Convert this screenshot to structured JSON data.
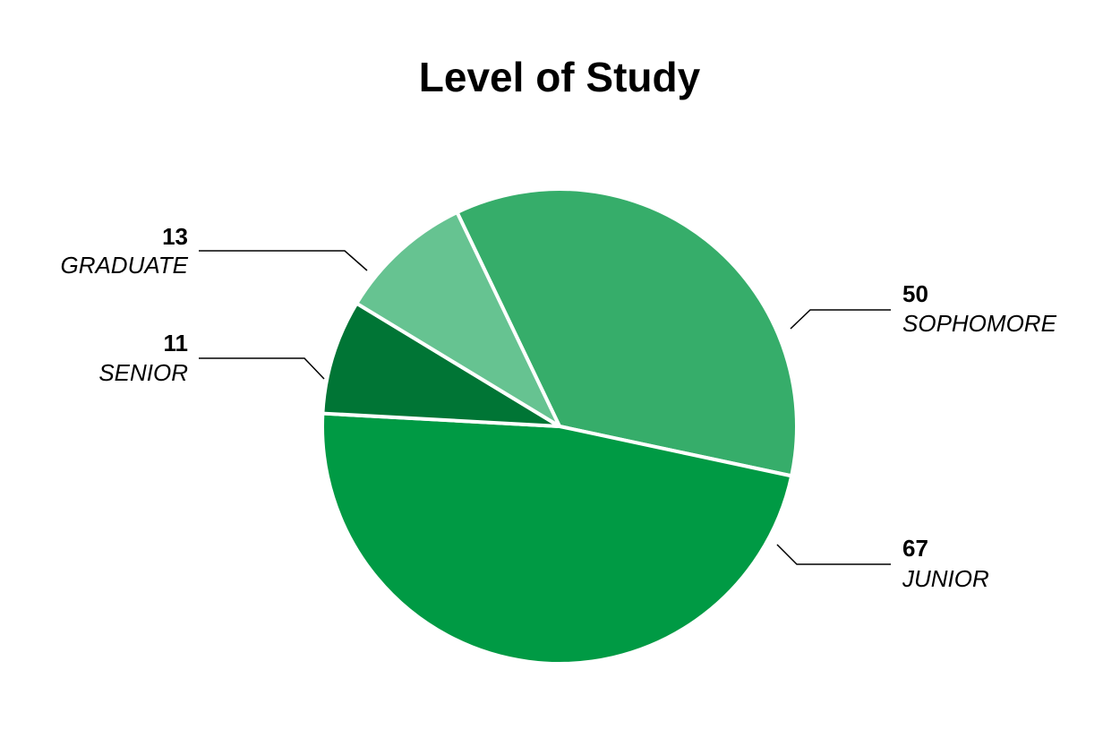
{
  "chart_data": {
    "type": "pie",
    "title": "Level of Study",
    "categories": [
      "SOPHOMORE",
      "JUNIOR",
      "SENIOR",
      "GRADUATE"
    ],
    "values": [
      50,
      67,
      11,
      13
    ],
    "colors": [
      "#36ad6a",
      "#009a44",
      "#007535",
      "#66c391"
    ]
  }
}
